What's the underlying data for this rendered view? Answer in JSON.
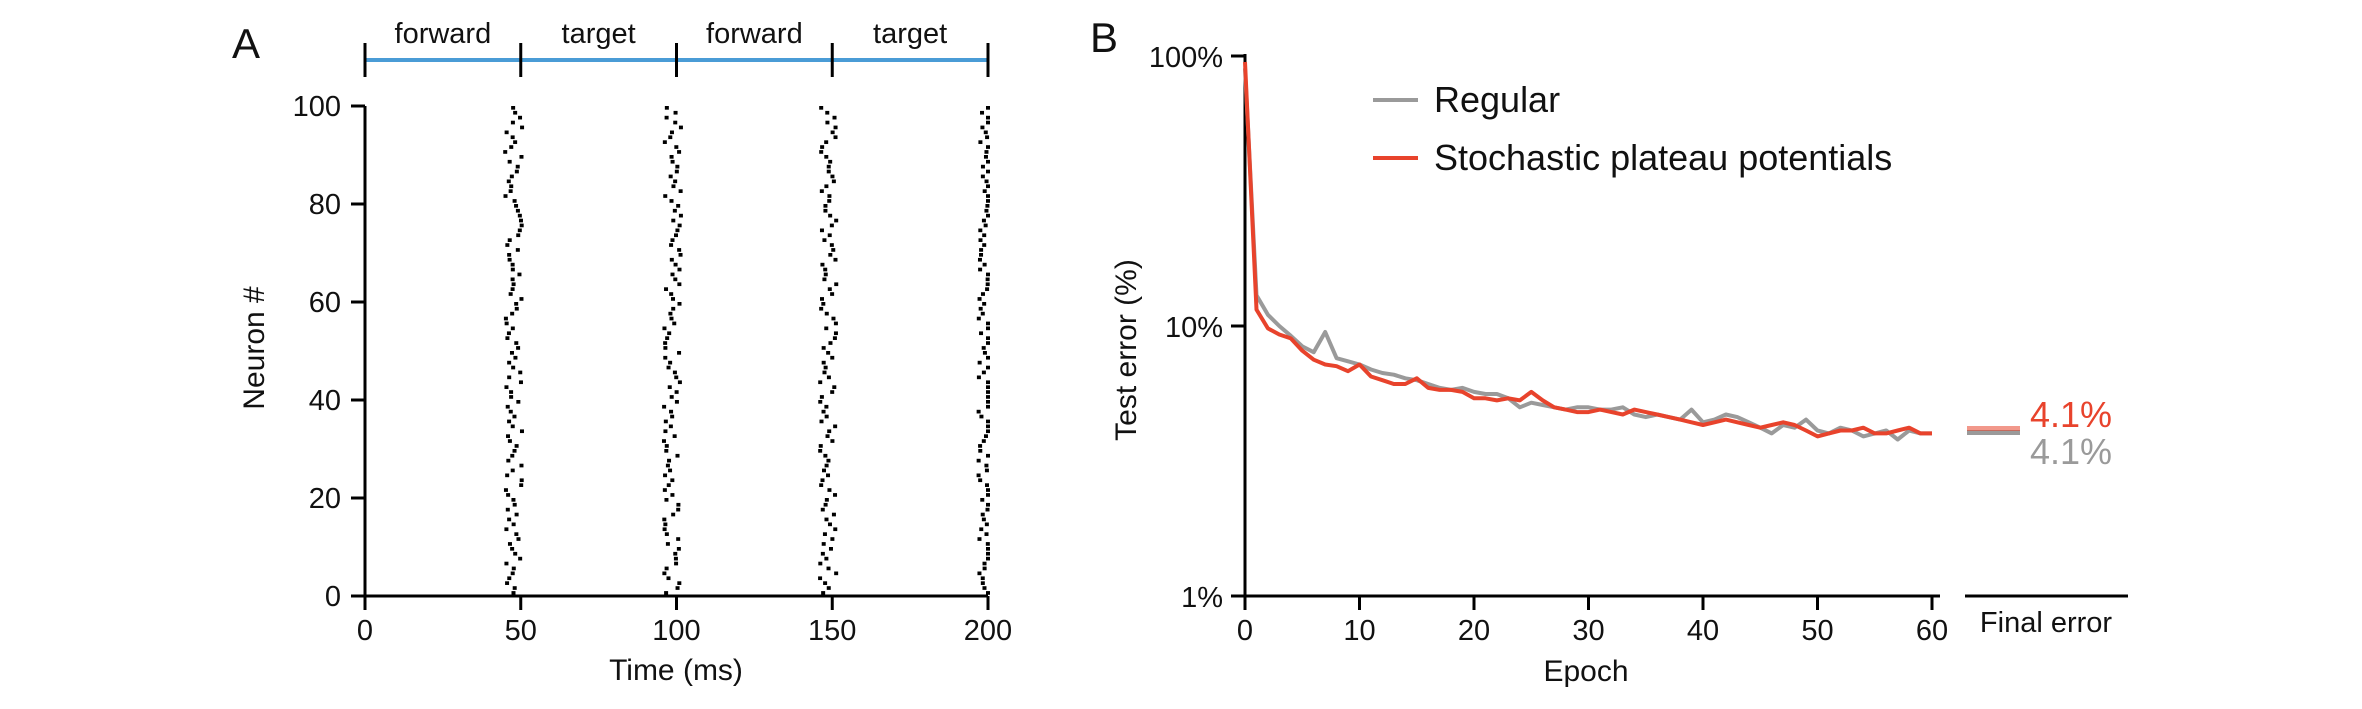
{
  "colors": {
    "forward_bar": "#4a9cd6",
    "regular": "#9a9a9a",
    "stochastic": "#e8432c",
    "axis": "#000000",
    "spike": "#000000"
  },
  "chart_data": [
    {
      "panel": "A",
      "type": "raster",
      "xlabel": "Time (ms)",
      "ylabel": "Neuron #",
      "xlim": [
        0,
        200
      ],
      "ylim": [
        0,
        100
      ],
      "xticks": [
        0,
        50,
        100,
        150,
        200
      ],
      "yticks": [
        0,
        20,
        40,
        60,
        80,
        100
      ],
      "phases": [
        {
          "label": "forward",
          "start": 0,
          "end": 50
        },
        {
          "label": "target",
          "start": 50,
          "end": 100
        },
        {
          "label": "forward",
          "start": 100,
          "end": 150
        },
        {
          "label": "target",
          "start": 150,
          "end": 200
        }
      ],
      "spike_bursts_ms": [
        48,
        99,
        149,
        200
      ],
      "neurons": 100
    },
    {
      "panel": "B",
      "type": "line",
      "xlabel": "Epoch",
      "ylabel": "Test error (%)",
      "yscale": "log",
      "xlim": [
        0,
        60
      ],
      "ylim": [
        1,
        100
      ],
      "xticks": [
        0,
        10,
        20,
        30,
        40,
        50,
        60
      ],
      "yticks": [
        {
          "value": 1,
          "label": "1%"
        },
        {
          "value": 10,
          "label": "10%"
        },
        {
          "value": 100,
          "label": "100%"
        }
      ],
      "series": [
        {
          "name": "Regular",
          "color": "#9a9a9a",
          "x": [
            0,
            1,
            2,
            3,
            4,
            5,
            6,
            7,
            8,
            9,
            10,
            11,
            12,
            13,
            14,
            15,
            16,
            17,
            18,
            19,
            20,
            21,
            22,
            23,
            24,
            25,
            26,
            27,
            28,
            29,
            30,
            31,
            32,
            33,
            34,
            35,
            36,
            37,
            38,
            39,
            40,
            41,
            42,
            43,
            44,
            45,
            46,
            47,
            48,
            49,
            50,
            51,
            52,
            53,
            54,
            55,
            56,
            57,
            58,
            59,
            60
          ],
          "values": [
            90,
            13,
            11,
            10,
            9.2,
            8.4,
            8.0,
            9.5,
            7.6,
            7.4,
            7.2,
            6.9,
            6.7,
            6.6,
            6.4,
            6.3,
            6.1,
            5.9,
            5.8,
            5.9,
            5.7,
            5.6,
            5.6,
            5.4,
            5.0,
            5.2,
            5.1,
            5.0,
            4.9,
            5.0,
            5.0,
            4.9,
            4.9,
            5.0,
            4.7,
            4.6,
            4.7,
            4.6,
            4.5,
            4.9,
            4.4,
            4.5,
            4.7,
            4.6,
            4.4,
            4.2,
            4.0,
            4.3,
            4.2,
            4.5,
            4.1,
            4.0,
            4.2,
            4.1,
            3.9,
            4.0,
            4.1,
            3.8,
            4.1,
            4.0,
            4.0
          ]
        },
        {
          "name": "Stochastic plateau potentials",
          "color": "#e8432c",
          "x": [
            0,
            1,
            2,
            3,
            4,
            5,
            6,
            7,
            8,
            9,
            10,
            11,
            12,
            13,
            14,
            15,
            16,
            17,
            18,
            19,
            20,
            21,
            22,
            23,
            24,
            25,
            26,
            27,
            28,
            29,
            30,
            31,
            32,
            33,
            34,
            35,
            36,
            37,
            38,
            39,
            40,
            41,
            42,
            43,
            44,
            45,
            46,
            47,
            48,
            49,
            50,
            51,
            52,
            53,
            54,
            55,
            56,
            57,
            58,
            59,
            60
          ],
          "values": [
            95,
            11.5,
            9.8,
            9.3,
            9.0,
            8.1,
            7.5,
            7.2,
            7.1,
            6.8,
            7.2,
            6.5,
            6.3,
            6.1,
            6.1,
            6.4,
            5.9,
            5.8,
            5.8,
            5.7,
            5.4,
            5.4,
            5.3,
            5.4,
            5.3,
            5.7,
            5.3,
            5.0,
            4.9,
            4.8,
            4.8,
            4.9,
            4.8,
            4.7,
            4.9,
            4.8,
            4.7,
            4.6,
            4.5,
            4.4,
            4.3,
            4.4,
            4.5,
            4.4,
            4.3,
            4.2,
            4.3,
            4.4,
            4.3,
            4.1,
            3.9,
            4.0,
            4.1,
            4.1,
            4.2,
            4.0,
            4.0,
            4.1,
            4.2,
            4.0,
            4.0
          ]
        }
      ],
      "final_error": {
        "label": "Final error",
        "stochastic": "4.1%",
        "regular": "4.1%",
        "value": 4.1
      }
    }
  ]
}
